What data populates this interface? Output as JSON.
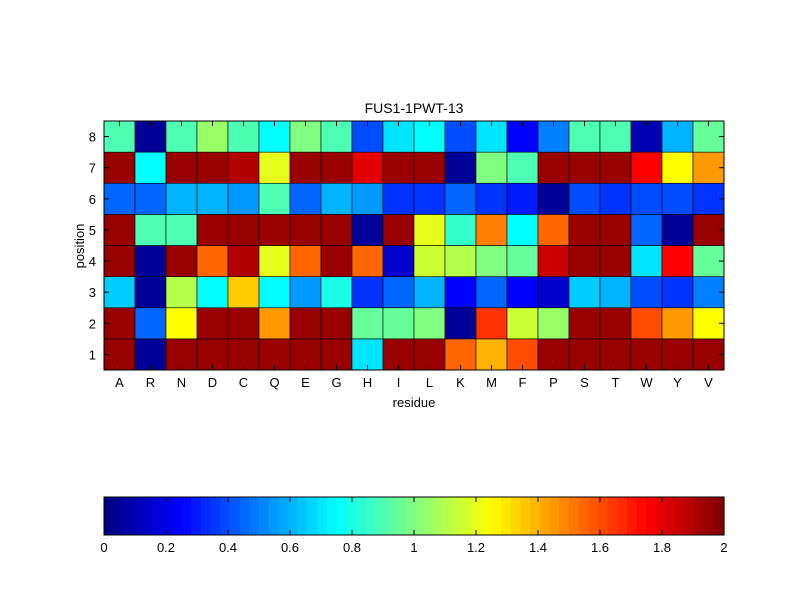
{
  "chart_data": {
    "type": "heatmap",
    "title": "FUS1-1PWT-13",
    "xlabel": "residue",
    "ylabel": "position",
    "x_categories": [
      "A",
      "R",
      "N",
      "D",
      "C",
      "Q",
      "E",
      "G",
      "H",
      "I",
      "L",
      "K",
      "M",
      "F",
      "P",
      "S",
      "T",
      "W",
      "Y",
      "V"
    ],
    "y_categories": [
      "1",
      "2",
      "3",
      "4",
      "5",
      "6",
      "7",
      "8"
    ],
    "values": [
      [
        1.95,
        0.05,
        1.95,
        1.95,
        1.95,
        1.95,
        1.95,
        1.95,
        0.7,
        1.95,
        1.95,
        1.55,
        1.4,
        1.6,
        1.95,
        1.95,
        1.95,
        1.95,
        1.95,
        1.95
      ],
      [
        1.95,
        0.45,
        1.25,
        1.95,
        1.95,
        1.45,
        1.95,
        1.95,
        0.95,
        0.95,
        1.0,
        0.05,
        1.65,
        1.15,
        1.05,
        1.95,
        1.95,
        1.6,
        1.45,
        1.25
      ],
      [
        0.65,
        0.05,
        1.1,
        0.75,
        1.35,
        0.75,
        0.55,
        0.8,
        0.35,
        0.45,
        0.6,
        0.25,
        0.45,
        0.25,
        0.15,
        0.65,
        0.6,
        0.4,
        0.35,
        0.5
      ],
      [
        1.95,
        0.05,
        1.95,
        1.55,
        1.9,
        1.2,
        1.55,
        1.95,
        1.55,
        0.15,
        1.15,
        1.1,
        1.0,
        0.95,
        1.85,
        1.95,
        1.95,
        0.7,
        1.75,
        0.95
      ],
      [
        1.95,
        0.9,
        0.9,
        1.95,
        1.95,
        1.95,
        1.95,
        1.95,
        0.05,
        1.95,
        1.2,
        0.85,
        1.5,
        0.75,
        1.55,
        1.95,
        1.95,
        0.45,
        0.05,
        1.95
      ],
      [
        0.45,
        0.45,
        0.6,
        0.6,
        0.55,
        0.9,
        0.45,
        0.6,
        0.55,
        0.35,
        0.35,
        0.45,
        0.35,
        0.3,
        0.05,
        0.4,
        0.35,
        0.4,
        0.4,
        0.35
      ],
      [
        1.95,
        0.75,
        1.95,
        1.95,
        1.9,
        1.2,
        1.95,
        1.95,
        1.8,
        1.95,
        1.95,
        0.05,
        1.0,
        0.9,
        1.95,
        1.95,
        1.95,
        1.75,
        1.25,
        1.45
      ],
      [
        0.9,
        0.05,
        0.9,
        1.05,
        0.9,
        0.75,
        1.0,
        0.9,
        0.4,
        0.7,
        0.75,
        0.4,
        0.7,
        0.25,
        0.5,
        0.9,
        0.9,
        0.1,
        0.6,
        0.95
      ]
    ],
    "colormap": "jet",
    "colorbar": {
      "orientation": "horizontal",
      "position": "bottom",
      "range": [
        0,
        2
      ],
      "tick_labels": [
        "0",
        "0.2",
        "0.4",
        "0.6",
        "0.8",
        "1",
        "1.2",
        "1.4",
        "1.6",
        "1.8",
        "2"
      ]
    }
  }
}
